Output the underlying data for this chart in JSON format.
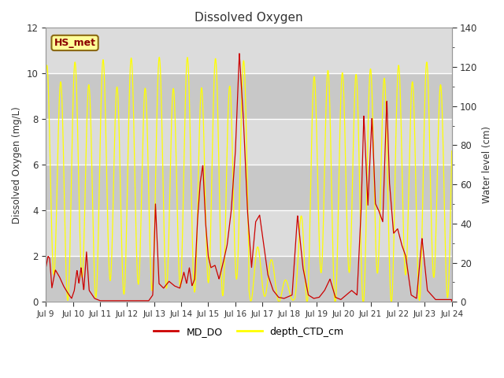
{
  "title": "Dissolved Oxygen",
  "ylabel_left": "Dissolved Oxygen (mg/L)",
  "ylabel_right": "Water level (cm)",
  "ylim_left": [
    0,
    12
  ],
  "ylim_right": [
    0,
    140
  ],
  "annotation_text": "HS_met",
  "annotation_color": "#8B0000",
  "annotation_bg": "#FFFF99",
  "annotation_border": "#8B6914",
  "line_color_DO": "#CC0000",
  "line_color_depth": "#FFFF00",
  "legend_labels": [
    "MD_DO",
    "depth_CTD_cm"
  ],
  "fig_bg": "#FFFFFF",
  "plot_band_light": "#DCDCDC",
  "plot_band_dark": "#C8C8C8",
  "grid_color": "#FFFFFF",
  "tick_labels": [
    "Jul 9",
    "Jul 10",
    "Jul 11",
    "Jul 12",
    "Jul 13",
    "Jul 14",
    "Jul 15",
    "Jul 16",
    "Jul 17",
    "Jul 18",
    "Jul 19",
    "Jul 20",
    "Jul 21",
    "Jul 22",
    "Jul 23",
    "Jul 24"
  ]
}
